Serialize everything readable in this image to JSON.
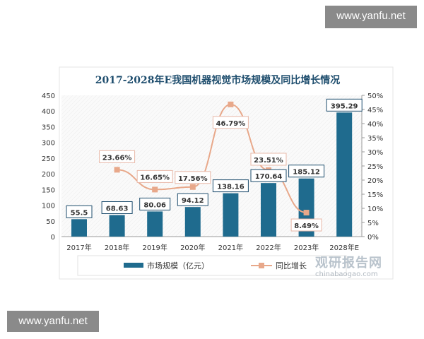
{
  "watermark_top": "www.yanfu.net",
  "watermark_bottom": "www.yanfu.net",
  "logo": {
    "cn": "观研报告网",
    "en": "chinabaogao.com"
  },
  "chart_data": {
    "type": "bar+line",
    "title": "2017-2028年E我国机器视觉市场规模及同比增长情况",
    "categories": [
      "2017年",
      "2018年",
      "2019年",
      "2020年",
      "2021年",
      "2022年",
      "2023年",
      "2028年E"
    ],
    "series": [
      {
        "name": "市场规模（亿元）",
        "type": "bar",
        "axis": "left",
        "color": "#1f6b8e",
        "values": [
          55.5,
          68.63,
          80.06,
          94.12,
          138.16,
          170.64,
          185.12,
          395.29
        ],
        "labels": [
          "55.5",
          "68.63",
          "80.06",
          "94.12",
          "138.16",
          "170.64",
          "185.12",
          "395.29"
        ]
      },
      {
        "name": "同比增长",
        "type": "line",
        "axis": "right",
        "color": "#e8a88a",
        "values": [
          null,
          23.66,
          16.65,
          17.56,
          46.79,
          23.51,
          8.49,
          null
        ],
        "labels": [
          "",
          "23.66%",
          "16.65%",
          "17.56%",
          "46.79%",
          "23.51%",
          "8.49%",
          ""
        ]
      }
    ],
    "y_left": {
      "range": [
        0,
        450
      ],
      "ticks": [
        "0",
        "50",
        "100",
        "150",
        "200",
        "250",
        "300",
        "350",
        "400",
        "450"
      ]
    },
    "y_right": {
      "range": [
        0,
        50
      ],
      "ticks": [
        "0%",
        "5%",
        "10%",
        "15%",
        "20%",
        "25%",
        "30%",
        "35%",
        "40%",
        "45%",
        "50%"
      ]
    },
    "legend_placement": "bottom",
    "grid": false
  }
}
